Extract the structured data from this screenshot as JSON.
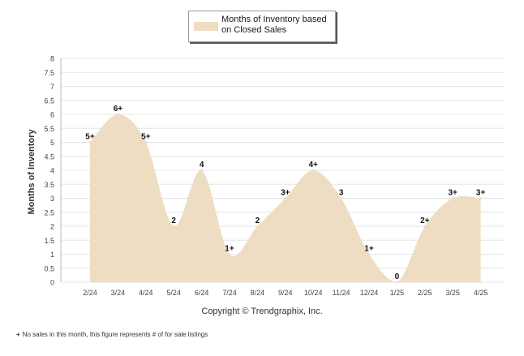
{
  "chart_data": {
    "type": "area",
    "ylabel": "Months of Inventory",
    "ylim": [
      0,
      8
    ],
    "yticks": [
      "0",
      "0.5",
      "1",
      "1.5",
      "2",
      "2.5",
      "3",
      "3.5",
      "4",
      "4.5",
      "5",
      "5.5",
      "6",
      "6.5",
      "7",
      "7.5",
      "8"
    ],
    "categories": [
      "2/24",
      "3/24",
      "4/24",
      "5/24",
      "6/24",
      "7/24",
      "8/24",
      "9/24",
      "10/24",
      "11/24",
      "12/24",
      "1/25",
      "2/25",
      "3/25",
      "4/25"
    ],
    "series": [
      {
        "name": "Months of Inventory based on Closed Sales",
        "values": [
          5,
          6,
          5,
          2,
          4,
          1,
          2,
          3,
          4,
          3,
          1,
          0,
          2,
          3,
          3
        ],
        "labels": [
          "5+",
          "6+",
          "5+",
          "2",
          "4",
          "1+",
          "2",
          "3+",
          "4+",
          "3",
          "1+",
          "0",
          "2+",
          "3+",
          "3+"
        ]
      }
    ],
    "grid": true,
    "legend": "top-center",
    "colors": {
      "area": "#eeddc2",
      "grid": "#e6e6e6",
      "axis": "#bbbbbb"
    }
  },
  "copyright": "Copyright © Trendgraphix, Inc.",
  "footnote": {
    "mark": "+",
    "text": "No sales in this month, this figure represents # of for sale listings"
  }
}
